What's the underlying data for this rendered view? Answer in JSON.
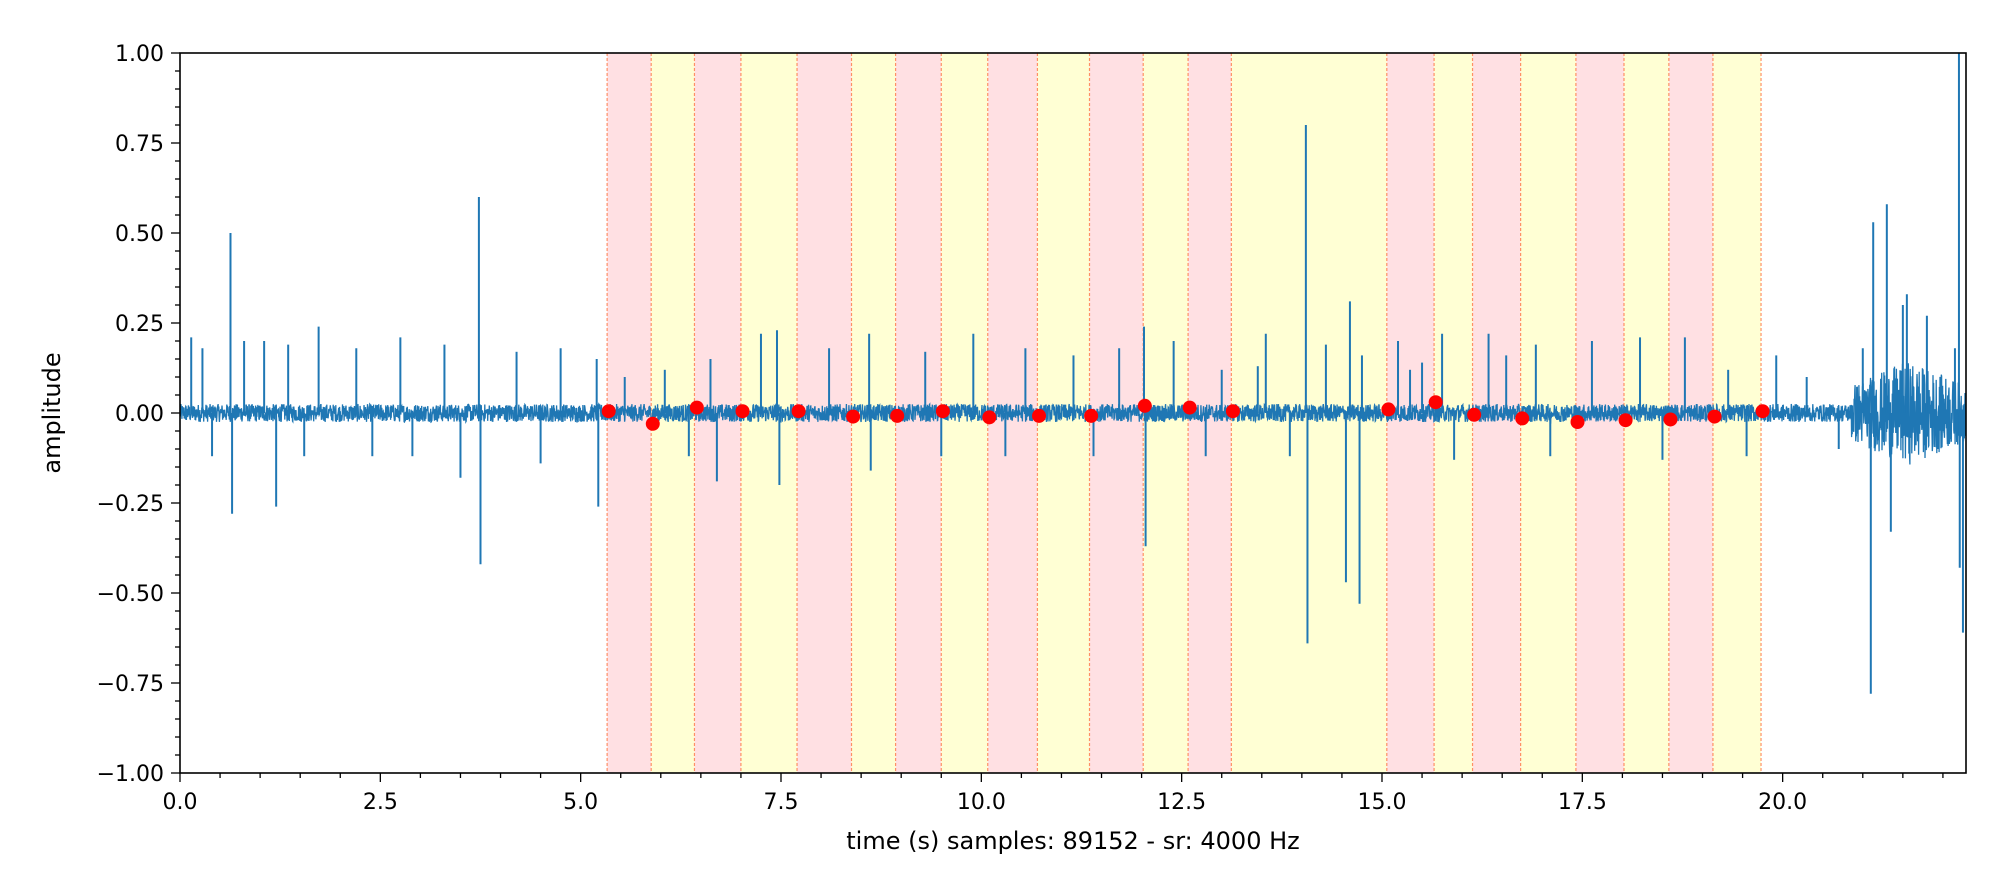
{
  "chart_data": {
    "type": "line",
    "xlabel": "time (s) samples: 89152 - sr: 4000 Hz",
    "ylabel": "amplitude",
    "xlim": [
      0,
      22.288
    ],
    "ylim": [
      -1.0,
      1.0
    ],
    "xticks": [
      0.0,
      2.5,
      5.0,
      7.5,
      10.0,
      12.5,
      15.0,
      17.5,
      20.0
    ],
    "xtick_labels": [
      "0.0",
      "2.5",
      "5.0",
      "7.5",
      "10.0",
      "12.5",
      "15.0",
      "17.5",
      "20.0"
    ],
    "yticks": [
      1.0,
      0.75,
      0.5,
      0.25,
      0.0,
      -0.25,
      -0.5,
      -0.75,
      -1.0
    ],
    "ytick_labels": [
      "1.00",
      "0.75",
      "0.50",
      "0.25",
      "0.00",
      "−0.25",
      "−0.50",
      "−0.75",
      "−1.00"
    ],
    "grid": false,
    "signal_color": "#1f77b4",
    "marker_color": "#ff0000",
    "boundary_line_color": "#ff7f50",
    "region_colors": [
      "#ffe0e3",
      "#ffffd4"
    ],
    "boundaries": [
      5.33,
      5.88,
      6.42,
      7.0,
      7.7,
      8.38,
      8.93,
      9.5,
      10.08,
      10.7,
      11.35,
      12.02,
      12.58,
      13.12,
      15.06,
      15.65,
      16.13,
      16.73,
      17.42,
      18.02,
      18.58,
      19.13,
      19.73
    ],
    "region_types": [
      "red",
      "yellow",
      "red",
      "yellow",
      "red",
      "yellow",
      "red",
      "yellow",
      "red",
      "yellow",
      "red",
      "yellow",
      "red",
      "yellow",
      "red",
      "yellow",
      "red",
      "yellow",
      "red",
      "yellow",
      "red",
      "yellow"
    ],
    "markers": [
      {
        "x": 5.35,
        "y": 0.005
      },
      {
        "x": 5.9,
        "y": -0.03
      },
      {
        "x": 6.45,
        "y": 0.015
      },
      {
        "x": 7.02,
        "y": 0.005
      },
      {
        "x": 7.72,
        "y": 0.005
      },
      {
        "x": 8.4,
        "y": -0.01
      },
      {
        "x": 8.95,
        "y": -0.008
      },
      {
        "x": 9.52,
        "y": 0.005
      },
      {
        "x": 10.1,
        "y": -0.012
      },
      {
        "x": 10.72,
        "y": -0.008
      },
      {
        "x": 11.37,
        "y": -0.008
      },
      {
        "x": 12.04,
        "y": 0.02
      },
      {
        "x": 12.6,
        "y": 0.015
      },
      {
        "x": 13.14,
        "y": 0.005
      },
      {
        "x": 15.08,
        "y": 0.01
      },
      {
        "x": 15.67,
        "y": 0.03
      },
      {
        "x": 16.15,
        "y": -0.005
      },
      {
        "x": 16.75,
        "y": -0.015
      },
      {
        "x": 17.44,
        "y": -0.025
      },
      {
        "x": 18.04,
        "y": -0.02
      },
      {
        "x": 18.6,
        "y": -0.018
      },
      {
        "x": 19.15,
        "y": -0.01
      },
      {
        "x": 19.75,
        "y": 0.005
      }
    ],
    "spikes": [
      {
        "x": 0.14,
        "y": 0.21
      },
      {
        "x": 0.28,
        "y": 0.18
      },
      {
        "x": 0.4,
        "y": -0.12
      },
      {
        "x": 0.63,
        "y": 0.5
      },
      {
        "x": 0.65,
        "y": -0.28
      },
      {
        "x": 0.8,
        "y": 0.2
      },
      {
        "x": 1.05,
        "y": 0.2
      },
      {
        "x": 1.2,
        "y": -0.26
      },
      {
        "x": 1.35,
        "y": 0.19
      },
      {
        "x": 1.55,
        "y": -0.12
      },
      {
        "x": 1.73,
        "y": 0.24
      },
      {
        "x": 2.2,
        "y": 0.18
      },
      {
        "x": 2.4,
        "y": -0.12
      },
      {
        "x": 2.75,
        "y": 0.21
      },
      {
        "x": 2.9,
        "y": -0.12
      },
      {
        "x": 3.3,
        "y": 0.19
      },
      {
        "x": 3.5,
        "y": -0.18
      },
      {
        "x": 3.73,
        "y": 0.6
      },
      {
        "x": 3.75,
        "y": -0.42
      },
      {
        "x": 4.2,
        "y": 0.17
      },
      {
        "x": 4.5,
        "y": -0.14
      },
      {
        "x": 4.75,
        "y": 0.18
      },
      {
        "x": 5.2,
        "y": 0.15
      },
      {
        "x": 5.22,
        "y": -0.26
      },
      {
        "x": 5.55,
        "y": 0.1
      },
      {
        "x": 6.05,
        "y": 0.12
      },
      {
        "x": 6.35,
        "y": -0.12
      },
      {
        "x": 6.62,
        "y": 0.15
      },
      {
        "x": 6.7,
        "y": -0.19
      },
      {
        "x": 7.25,
        "y": 0.22
      },
      {
        "x": 7.45,
        "y": 0.23
      },
      {
        "x": 7.48,
        "y": -0.2
      },
      {
        "x": 8.1,
        "y": 0.18
      },
      {
        "x": 8.6,
        "y": 0.22
      },
      {
        "x": 8.62,
        "y": -0.16
      },
      {
        "x": 9.3,
        "y": 0.17
      },
      {
        "x": 9.5,
        "y": -0.12
      },
      {
        "x": 9.9,
        "y": 0.22
      },
      {
        "x": 10.3,
        "y": -0.12
      },
      {
        "x": 10.55,
        "y": 0.18
      },
      {
        "x": 11.15,
        "y": 0.16
      },
      {
        "x": 11.4,
        "y": -0.12
      },
      {
        "x": 11.72,
        "y": 0.18
      },
      {
        "x": 12.03,
        "y": 0.24
      },
      {
        "x": 12.05,
        "y": -0.37
      },
      {
        "x": 12.4,
        "y": 0.2
      },
      {
        "x": 12.8,
        "y": -0.12
      },
      {
        "x": 13.0,
        "y": 0.12
      },
      {
        "x": 13.45,
        "y": 0.13
      },
      {
        "x": 13.55,
        "y": 0.22
      },
      {
        "x": 13.85,
        "y": -0.12
      },
      {
        "x": 14.05,
        "y": 0.8
      },
      {
        "x": 14.07,
        "y": -0.64
      },
      {
        "x": 14.3,
        "y": 0.19
      },
      {
        "x": 14.55,
        "y": -0.47
      },
      {
        "x": 14.6,
        "y": 0.31
      },
      {
        "x": 14.72,
        "y": -0.53
      },
      {
        "x": 14.75,
        "y": 0.16
      },
      {
        "x": 15.2,
        "y": 0.2
      },
      {
        "x": 15.35,
        "y": 0.12
      },
      {
        "x": 15.5,
        "y": 0.14
      },
      {
        "x": 15.75,
        "y": 0.22
      },
      {
        "x": 15.9,
        "y": -0.13
      },
      {
        "x": 16.33,
        "y": 0.22
      },
      {
        "x": 16.55,
        "y": 0.16
      },
      {
        "x": 16.92,
        "y": 0.19
      },
      {
        "x": 17.1,
        "y": -0.12
      },
      {
        "x": 17.62,
        "y": 0.2
      },
      {
        "x": 18.22,
        "y": 0.21
      },
      {
        "x": 18.5,
        "y": -0.13
      },
      {
        "x": 18.78,
        "y": 0.21
      },
      {
        "x": 19.32,
        "y": 0.12
      },
      {
        "x": 19.55,
        "y": -0.12
      },
      {
        "x": 19.92,
        "y": 0.16
      },
      {
        "x": 20.3,
        "y": 0.1
      },
      {
        "x": 20.7,
        "y": -0.1
      },
      {
        "x": 21.0,
        "y": 0.18
      },
      {
        "x": 21.1,
        "y": -0.78
      },
      {
        "x": 21.13,
        "y": 0.53
      },
      {
        "x": 21.3,
        "y": 0.58
      },
      {
        "x": 21.35,
        "y": -0.33
      },
      {
        "x": 21.5,
        "y": 0.3
      },
      {
        "x": 21.55,
        "y": 0.33
      },
      {
        "x": 21.8,
        "y": 0.27
      },
      {
        "x": 22.15,
        "y": 0.18
      },
      {
        "x": 22.2,
        "y": 1.0
      },
      {
        "x": 22.21,
        "y": -0.43
      },
      {
        "x": 22.25,
        "y": -0.61
      }
    ],
    "noise_bursts": [
      {
        "x_start": 20.85,
        "x_end": 22.288,
        "amplitude": 0.12
      }
    ],
    "baseline_noise_amplitude": 0.025
  }
}
